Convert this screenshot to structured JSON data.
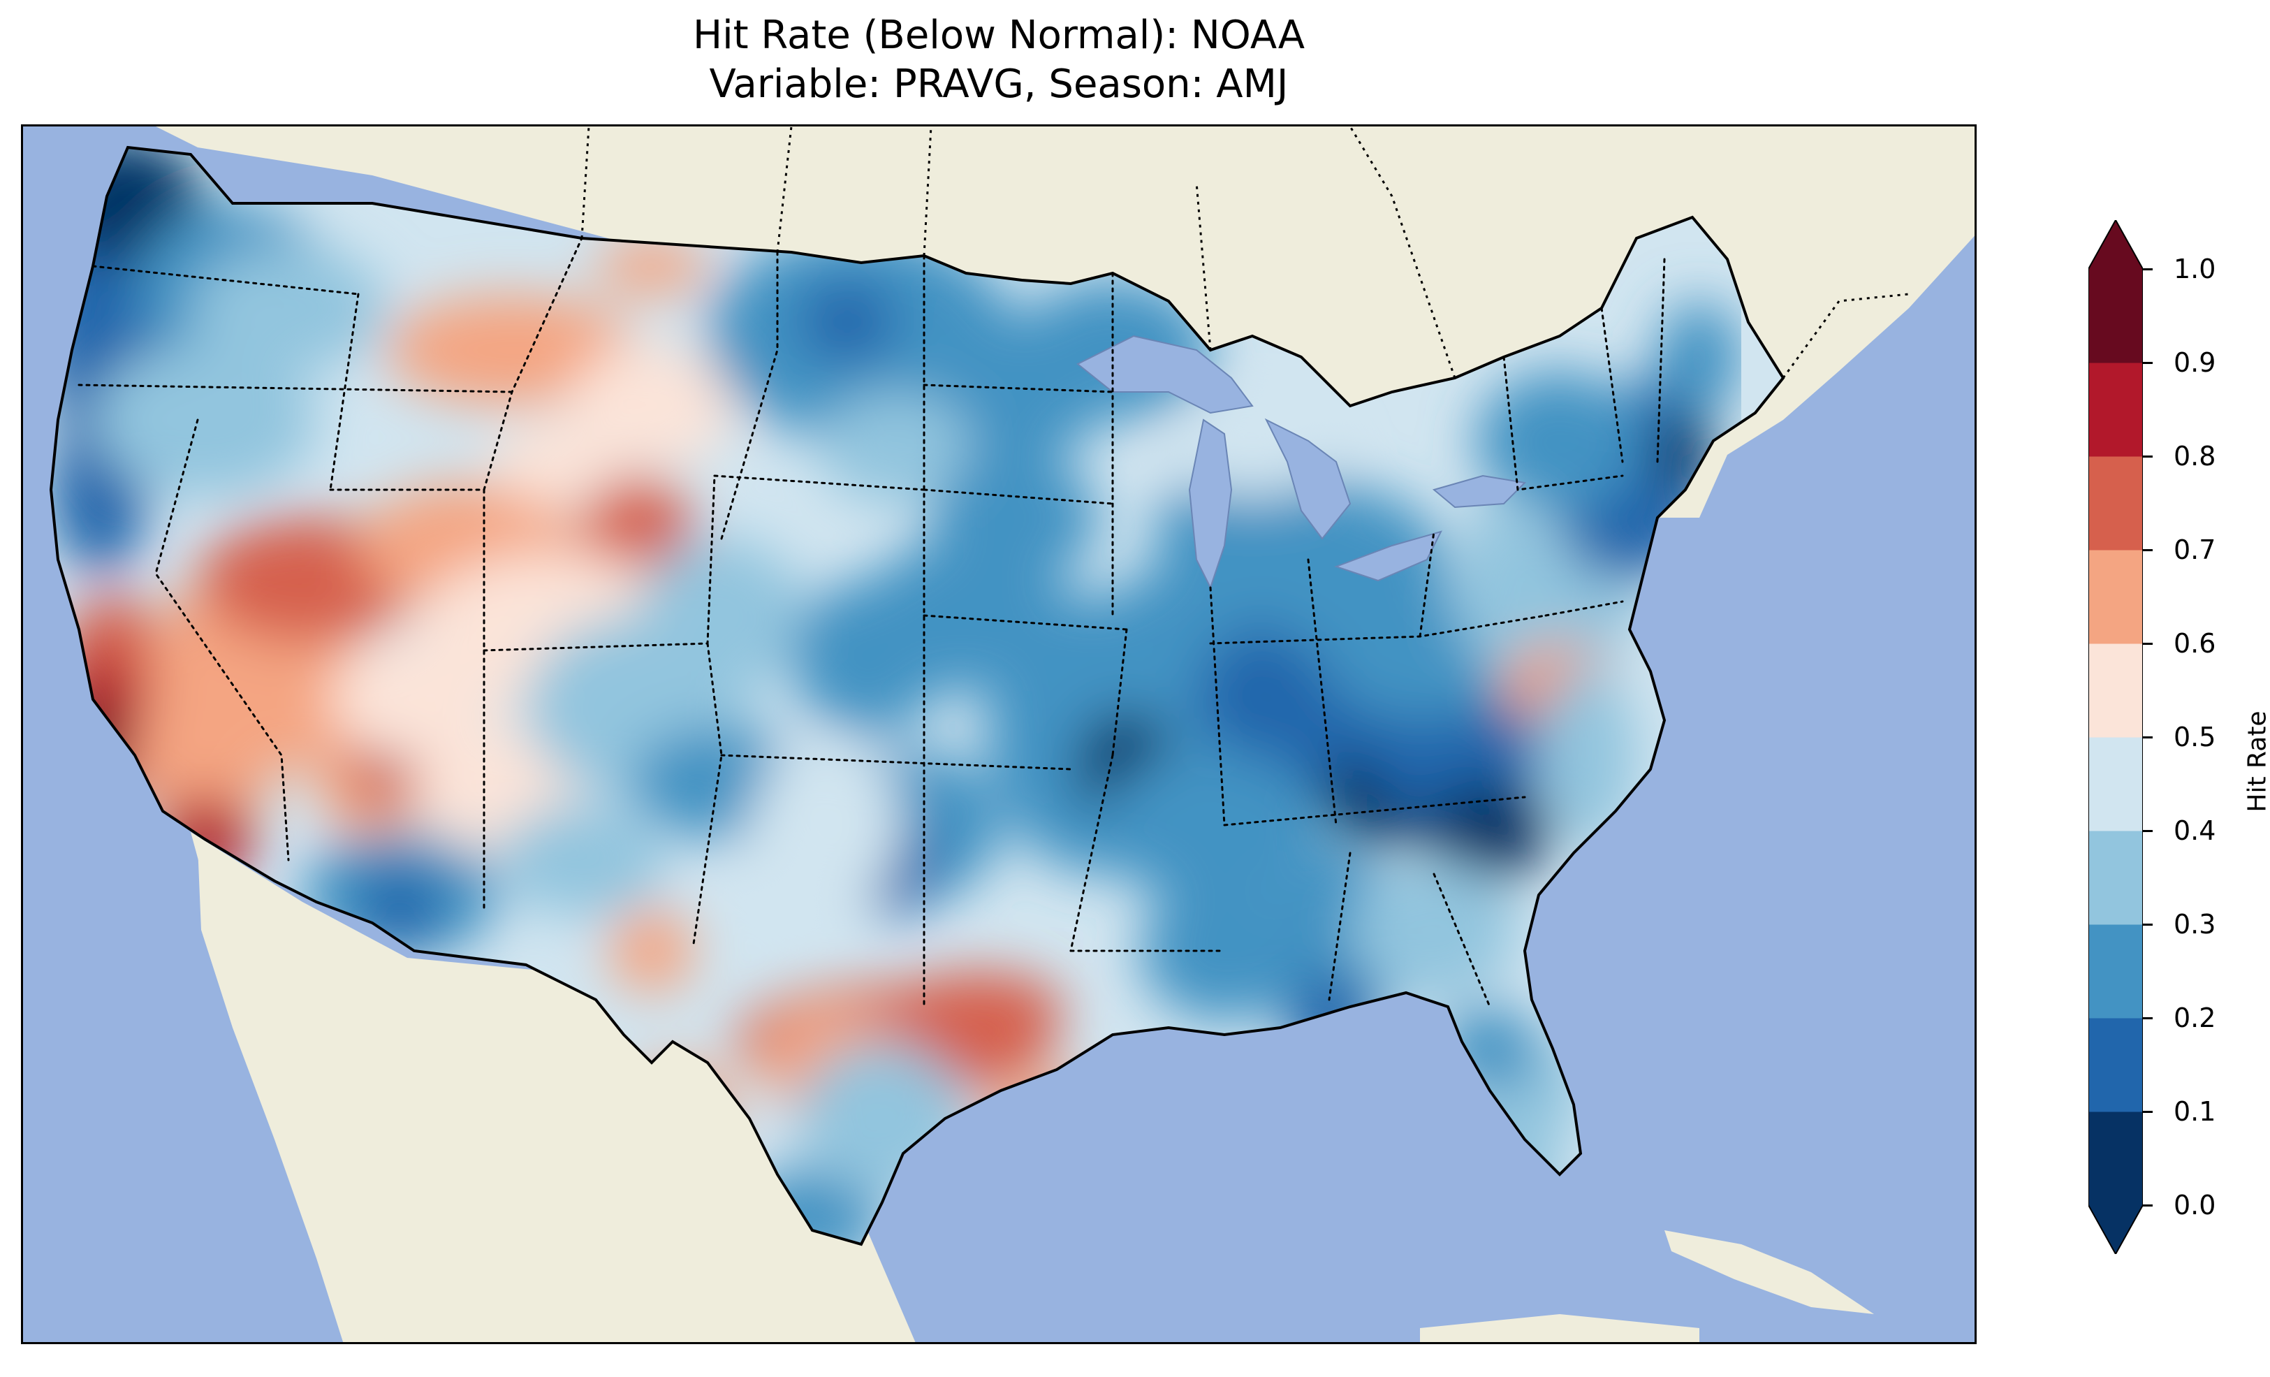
{
  "title": {
    "line1": "Hit Rate (Below Normal): NOAA",
    "line2": "Variable: PRAVG, Season: AMJ"
  },
  "map": {
    "projection": "Lambert conformal (CONUS)",
    "ocean_color": "#98b3e0",
    "land_color": "#efeddc",
    "lake_color": "#98b3e0",
    "coastline_color": "#000000",
    "state_border_style": "dotted"
  },
  "colorbar": {
    "label": "Hit Rate",
    "orientation": "vertical",
    "extend": "both",
    "ticks": [
      "0.0",
      "0.1",
      "0.2",
      "0.3",
      "0.4",
      "0.5",
      "0.6",
      "0.7",
      "0.8",
      "0.9",
      "1.0"
    ],
    "colors": [
      "#063264",
      "#2166ac",
      "#4393c3",
      "#92c5de",
      "#d1e5f0",
      "#fbe4d9",
      "#f4a582",
      "#d6604d",
      "#b2182b",
      "#670a1f"
    ],
    "under_color": "#063264",
    "over_color": "#670a1f"
  },
  "regional_patterns": [
    {
      "region": "Southern California / Southwest coast",
      "hit_rate_range": [
        0.7,
        1.0
      ]
    },
    {
      "region": "Nevada / Utah / Arizona interior",
      "hit_rate_range": [
        0.5,
        0.8
      ]
    },
    {
      "region": "Pacific Northwest coast",
      "hit_rate_range": [
        0.0,
        0.3
      ]
    },
    {
      "region": "Northern Plains",
      "hit_rate_range": [
        0.1,
        0.3
      ]
    },
    {
      "region": "Ohio Valley / Midwest",
      "hit_rate_range": [
        0.0,
        0.2
      ]
    },
    {
      "region": "Northeast / New England",
      "hit_rate_range": [
        0.1,
        0.3
      ]
    },
    {
      "region": "Central Texas",
      "hit_rate_range": [
        0.6,
        0.8
      ]
    },
    {
      "region": "Southeast / Florida",
      "hit_rate_range": [
        0.2,
        0.4
      ]
    }
  ]
}
